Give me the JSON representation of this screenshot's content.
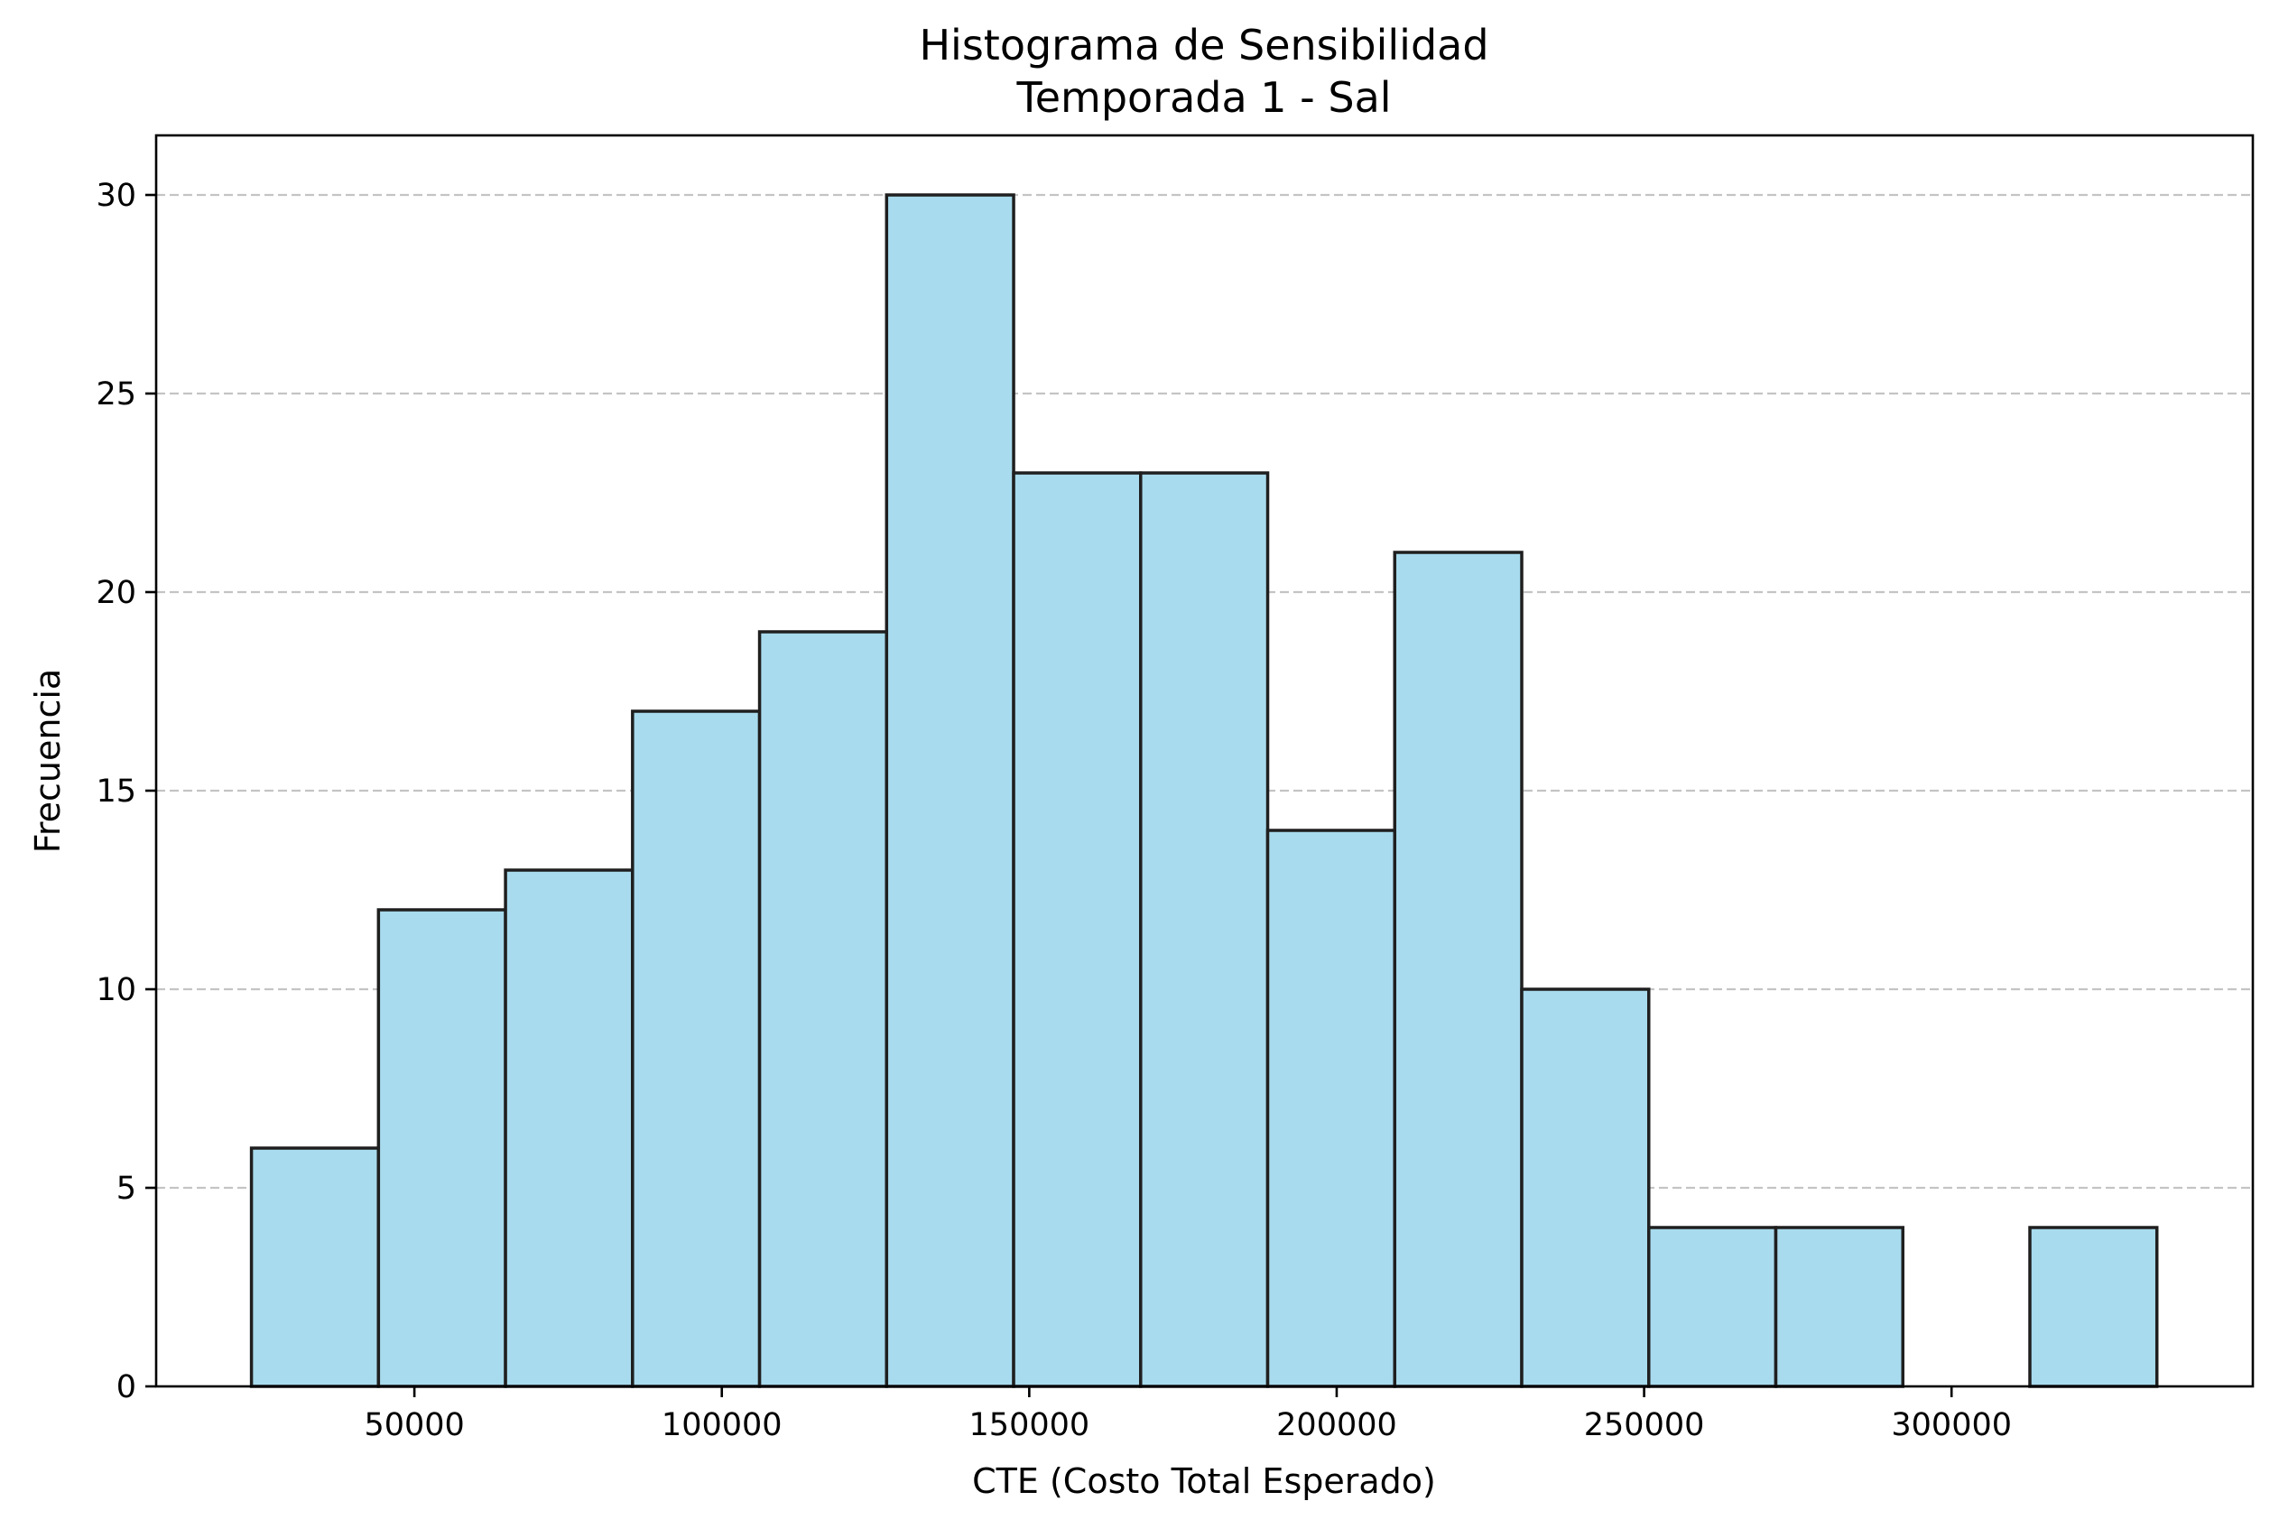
{
  "chart_data": {
    "type": "bar",
    "title": "Histograma de Sensibilidad",
    "subtitle": "Temporada 1 - Sal",
    "xlabel": "CTE (Costo Total Esperado)",
    "ylabel": "Frecuencia",
    "bin_edges": [
      23500,
      44160,
      64820,
      85480,
      106140,
      126800,
      147460,
      168120,
      188780,
      209440,
      230100,
      250760,
      271420,
      292080,
      312740,
      333400
    ],
    "values": [
      6,
      12,
      13,
      17,
      19,
      30,
      23,
      23,
      14,
      21,
      10,
      4,
      4,
      0,
      4
    ],
    "xlim": [
      8000,
      349000
    ],
    "ylim": [
      0,
      31.5
    ],
    "xticks": [
      50000,
      100000,
      150000,
      200000,
      250000,
      300000
    ],
    "xtick_labels": [
      "50000",
      "100000",
      "150000",
      "200000",
      "250000",
      "300000"
    ],
    "yticks": [
      0,
      5,
      10,
      15,
      20,
      25,
      30
    ],
    "ytick_labels": [
      "0",
      "5",
      "10",
      "15",
      "20",
      "25",
      "30"
    ],
    "grid": "y-axis dashed",
    "colors": {
      "bar_fill": "#a8dbed",
      "bar_edge": "#1f1f1f",
      "grid": "#c4c4c4"
    }
  }
}
